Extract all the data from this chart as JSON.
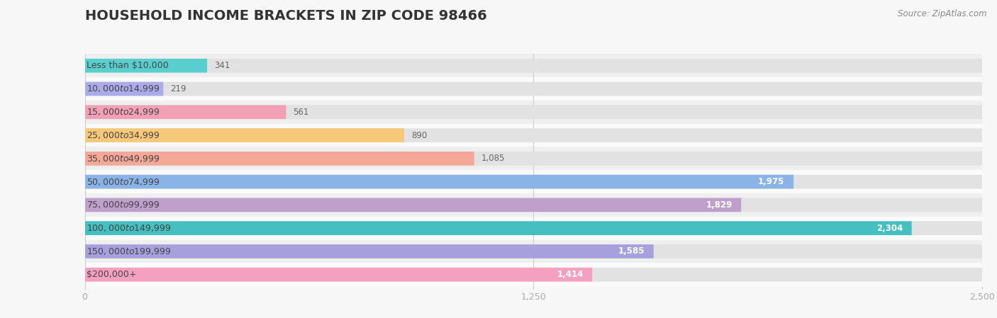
{
  "title": "HOUSEHOLD INCOME BRACKETS IN ZIP CODE 98466",
  "source": "Source: ZipAtlas.com",
  "categories": [
    "Less than $10,000",
    "$10,000 to $14,999",
    "$15,000 to $24,999",
    "$25,000 to $34,999",
    "$35,000 to $49,999",
    "$50,000 to $74,999",
    "$75,000 to $99,999",
    "$100,000 to $149,999",
    "$150,000 to $199,999",
    "$200,000+"
  ],
  "values": [
    341,
    219,
    561,
    890,
    1085,
    1975,
    1829,
    2304,
    1585,
    1414
  ],
  "bar_colors": [
    "#58CECE",
    "#ABABEA",
    "#F2A0B5",
    "#F5C87A",
    "#F5A898",
    "#8AB4E8",
    "#BF9FCC",
    "#45BFBF",
    "#A8A0DC",
    "#F5A0C0"
  ],
  "xlim": [
    0,
    2500
  ],
  "xticks": [
    0,
    1250,
    2500
  ],
  "bg_color": "#f7f7f7",
  "row_bg_odd": "#efefef",
  "row_bg_even": "#fafafa",
  "bar_bg_color": "#e2e2e2",
  "title_fontsize": 14,
  "label_fontsize": 9,
  "value_fontsize": 8.5,
  "source_fontsize": 8.5
}
